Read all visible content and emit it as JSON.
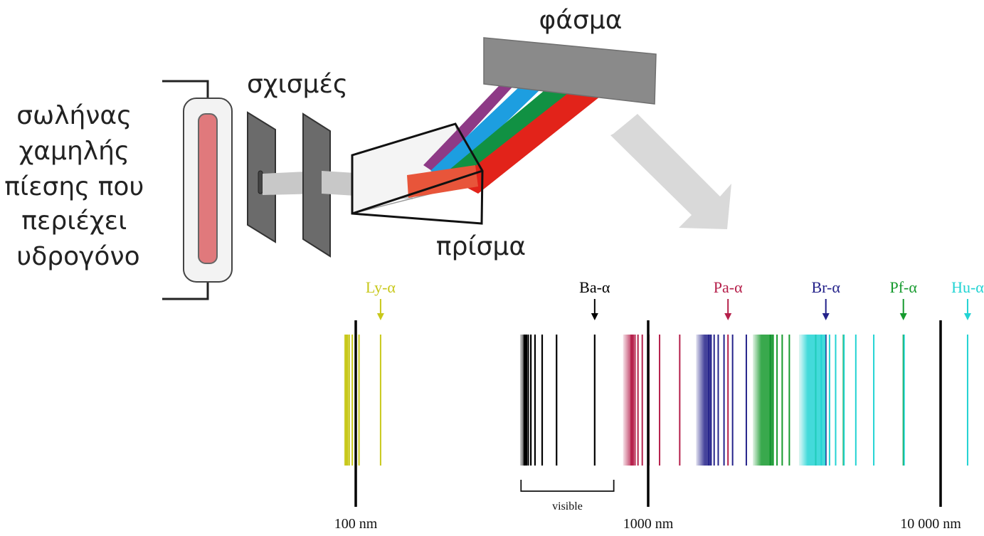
{
  "apparatus": {
    "tube_label": [
      "σωλήνας",
      "χαμηλής",
      "πίεσης που",
      "περιέχει",
      "υδρογόνο"
    ],
    "slits_label": "σχισμές",
    "prism_label": "πρίσμα",
    "spectrum_label": "φάσμα",
    "beam_colors": [
      "#8e3a86",
      "#1d9ee0",
      "#119143",
      "#e2231a"
    ]
  },
  "chart_data": {
    "type": "line-spectrum",
    "scale": "log",
    "x_range_nm": [
      85,
      14000
    ],
    "ticks": [
      {
        "value": 100,
        "label": "100 nm"
      },
      {
        "value": 1000,
        "label": "1000 nm"
      },
      {
        "value": 10000,
        "label": "10 000 nm"
      }
    ],
    "visible_bracket": {
      "range_nm": [
        380,
        750
      ],
      "label": "visible"
    },
    "series": [
      {
        "name": "Ly-α",
        "color": "#c8c81a",
        "alpha_nm": 121.6,
        "limit_nm": 91.2,
        "lines_nm": [
          121.6,
          102.6,
          97.3,
          95.0,
          93.8,
          93.1,
          92.6,
          92.3,
          92.1
        ]
      },
      {
        "name": "Ba-α",
        "color": "#000000",
        "alpha_nm": 656.3,
        "limit_nm": 364.6,
        "lines_nm": [
          656.3,
          486.1,
          434.0,
          410.2,
          397.0,
          388.9,
          383.5,
          379.8,
          377.1
        ]
      },
      {
        "name": "Pa-α",
        "color": "#b51f4a",
        "alpha_nm": 1875,
        "limit_nm": 820.4,
        "lines_nm": [
          1875,
          1282,
          1094,
          1005,
          954.6,
          922.9,
          901.5,
          886.3,
          875.0
        ]
      },
      {
        "name": "Br-α",
        "color": "#24228a",
        "alpha_nm": 4051,
        "limit_nm": 1458,
        "lines_nm": [
          4051,
          2625,
          2166,
          1944,
          1817,
          1736,
          1681,
          1641,
          1611
        ]
      },
      {
        "name": "Pf-α",
        "color": "#169a2e",
        "alpha_nm": 7460,
        "limit_nm": 2279,
        "lines_nm": [
          7460,
          4654,
          3741,
          3297,
          3039,
          2873,
          2758,
          2675,
          2613
        ]
      },
      {
        "name": "Hu-α",
        "color": "#22d3d3",
        "alpha_nm": 12370,
        "limit_nm": 3282,
        "lines_nm": [
          12370,
          7503,
          5908,
          5129,
          4673,
          4376,
          4171,
          4021,
          3908
        ]
      }
    ]
  }
}
